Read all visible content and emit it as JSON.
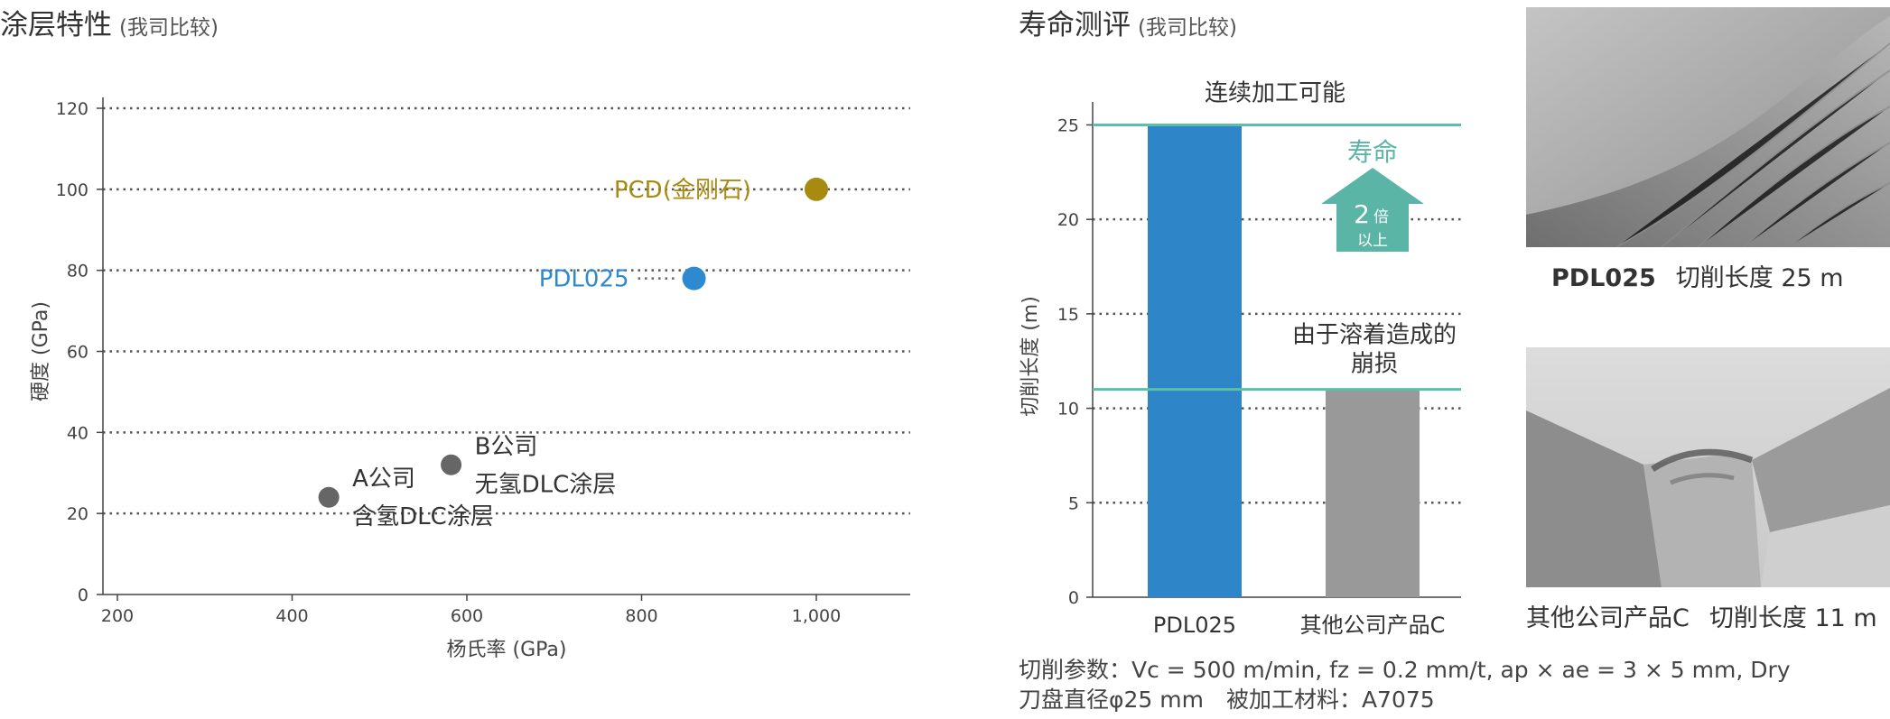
{
  "left": {
    "title": "涂层特性",
    "subtitle": "(我司比较)"
  },
  "right": {
    "title": "寿命测评",
    "subtitle": "(我司比较)"
  },
  "chart_data": [
    {
      "type": "scatter",
      "xlabel": "杨氏率 (GPa)",
      "ylabel": "硬度 (GPa)",
      "xlim": [
        200,
        1100
      ],
      "ylim": [
        0,
        120
      ],
      "x_ticks": [
        200,
        400,
        600,
        800,
        1000
      ],
      "x_tick_labels": [
        "200",
        "400",
        "600",
        "800",
        "1,000"
      ],
      "y_ticks": [
        0,
        20,
        40,
        60,
        80,
        100,
        120
      ],
      "grid": "horizontal dotted",
      "points": [
        {
          "label": "PCD(金刚石)",
          "x": 1000,
          "y": 100,
          "color": "#a88a10"
        },
        {
          "label": "PDL025",
          "x": 860,
          "y": 78,
          "color": "#2e8ad0"
        },
        {
          "label_lines": [
            "B公司",
            "无氢DLC涂层"
          ],
          "x": 582,
          "y": 32,
          "color": "#666666"
        },
        {
          "label_lines": [
            "A公司",
            "含氢DLC涂层"
          ],
          "x": 442,
          "y": 24,
          "color": "#666666"
        }
      ]
    },
    {
      "type": "bar",
      "ylabel": "切削长度 (m)",
      "ylim": [
        0,
        25.5
      ],
      "y_ticks": [
        0,
        5,
        10,
        15,
        20,
        25
      ],
      "grid": "horizontal dotted",
      "categories": [
        "PDL025",
        "其他公司产品C"
      ],
      "values": [
        25,
        11
      ],
      "colors": [
        "#2e86c8",
        "#999999"
      ],
      "reference_lines": [
        {
          "y": 25,
          "label": "连续加工可能",
          "color": "#5bbfa9"
        },
        {
          "y": 11,
          "label_lines": [
            "由于溶着造成的",
            "崩损"
          ],
          "color": "#5bbfa9"
        }
      ],
      "arrow": {
        "label": "寿命",
        "multiplier": "2",
        "unit": "倍",
        "suffix": "以上",
        "color": "#5bb5a6"
      }
    }
  ],
  "photos": [
    {
      "name": "PDL025",
      "caption": "切削长度 25 m"
    },
    {
      "name": "其他公司产品C",
      "caption": "切削长度 11 m"
    }
  ],
  "params": {
    "line1": "切削参数：Vc = 500 m/min,  fz = 0.2 mm/t, ap × ae = 3 × 5 mm, Dry",
    "line2": "刀盘直径φ25 mm　被加工材料：A7075"
  }
}
